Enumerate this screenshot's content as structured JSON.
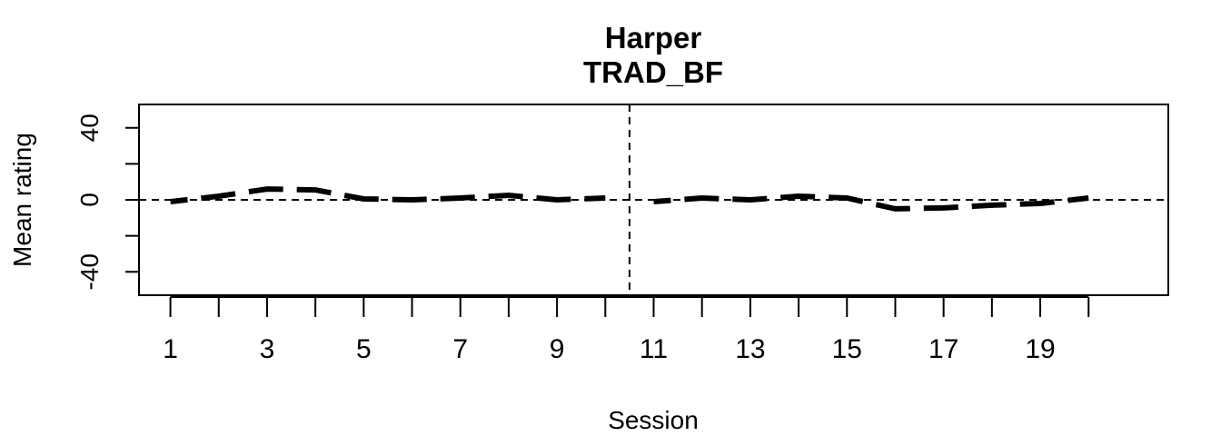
{
  "chart_data": {
    "type": "line",
    "title": "Harper",
    "subtitle": "TRAD_BF",
    "xlabel": "Session",
    "ylabel": "Mean rating",
    "xlim": [
      0.35,
      21.65
    ],
    "ylim": [
      -53,
      53
    ],
    "x_ticks": [
      1,
      2,
      3,
      4,
      5,
      6,
      7,
      8,
      9,
      10,
      11,
      12,
      13,
      14,
      15,
      16,
      17,
      18,
      19,
      20
    ],
    "x_tick_labels": [
      "1",
      "",
      "3",
      "",
      "5",
      "",
      "7",
      "",
      "9",
      "",
      "11",
      "",
      "13",
      "",
      "15",
      "",
      "17",
      "",
      "19",
      ""
    ],
    "y_ticks": [
      -40,
      -20,
      0,
      20,
      40
    ],
    "y_tick_labels": [
      "-40",
      "",
      "0",
      "",
      "40"
    ],
    "phase_change_after": 10.5,
    "reference_line": 0,
    "x": [
      1,
      2,
      3,
      4,
      5,
      6,
      7,
      8,
      9,
      10,
      11,
      12,
      13,
      14,
      15,
      16,
      17,
      18,
      19,
      20
    ],
    "values": [
      -1,
      2,
      6,
      5.5,
      0.5,
      0,
      1,
      2.5,
      0,
      1,
      -1,
      1,
      0,
      2,
      1,
      -5,
      -4.5,
      -3,
      -2,
      1
    ],
    "grid": false,
    "line_style": "dashed",
    "colors": {
      "line": "#000000",
      "axis": "#000000",
      "background": "#ffffff"
    }
  }
}
